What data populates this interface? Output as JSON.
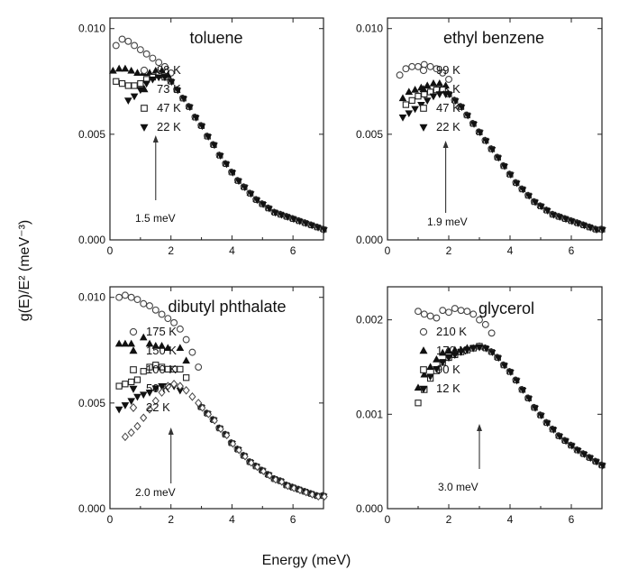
{
  "figure": {
    "xlabel": "Energy  (meV)",
    "ylabel": "g(E)/E² (meV⁻³)"
  },
  "chart_data": [
    {
      "type": "scatter",
      "title": "toluene",
      "xlim": [
        0,
        7
      ],
      "ylim": [
        0,
        0.0105
      ],
      "xticks": [
        "0",
        "2",
        "4",
        "6"
      ],
      "yticks": [
        "0.000",
        "0.005",
        "0.010"
      ],
      "annotation": {
        "label": "1.5 meV",
        "x": 1.5
      },
      "series": [
        {
          "name": "98 K",
          "marker": "circle-open",
          "x": [
            0.2,
            0.4,
            0.6,
            0.8,
            1.0,
            1.2,
            1.4,
            1.6,
            1.8,
            2.0
          ],
          "y": [
            0.0092,
            0.0095,
            0.0094,
            0.0092,
            0.009,
            0.0088,
            0.0086,
            0.0084,
            0.0082,
            0.0079
          ]
        },
        {
          "name": "73 K",
          "marker": "triangle-up",
          "x": [
            0.1,
            0.3,
            0.5,
            0.7,
            0.9,
            1.1,
            1.3,
            1.5,
            1.7,
            1.9
          ],
          "y": [
            0.008,
            0.0081,
            0.0081,
            0.008,
            0.0079,
            0.0079,
            0.0079,
            0.008,
            0.008,
            0.0078
          ]
        },
        {
          "name": "47 K",
          "marker": "square-open",
          "x": [
            0.2,
            0.4,
            0.6,
            0.8,
            1.0,
            1.2,
            1.4,
            1.6,
            1.8
          ],
          "y": [
            0.0075,
            0.0074,
            0.0073,
            0.0073,
            0.0074,
            0.0076,
            0.0077,
            0.0078,
            0.0077
          ]
        },
        {
          "name": "22 K",
          "marker": "triangle-down",
          "x": [
            0.6,
            0.8,
            1.0,
            1.2,
            1.4,
            1.6,
            1.8
          ],
          "y": [
            0.0066,
            0.0068,
            0.0071,
            0.0074,
            0.0076,
            0.0077,
            0.0077
          ]
        }
      ],
      "common_tail": {
        "x": [
          2.0,
          2.2,
          2.4,
          2.6,
          2.8,
          3.0,
          3.2,
          3.4,
          3.6,
          3.8,
          4.0,
          4.2,
          4.4,
          4.6,
          4.8,
          5.0,
          5.2,
          5.4,
          5.6,
          5.8,
          6.0,
          6.2,
          6.4,
          6.6,
          6.8,
          7.0
        ],
        "y": [
          0.0075,
          0.0071,
          0.0067,
          0.0063,
          0.0058,
          0.0054,
          0.0049,
          0.0045,
          0.004,
          0.0036,
          0.0032,
          0.0028,
          0.0025,
          0.0022,
          0.0019,
          0.0017,
          0.0015,
          0.0013,
          0.0012,
          0.0011,
          0.001,
          0.0009,
          0.0008,
          0.0007,
          0.0006,
          0.0005
        ]
      }
    },
    {
      "type": "scatter",
      "title": "ethyl benzene",
      "xlim": [
        0,
        7
      ],
      "ylim": [
        0,
        0.0105
      ],
      "xticks": [
        "0",
        "2",
        "4",
        "6"
      ],
      "yticks": [
        "0.000",
        "0.005",
        "0.010"
      ],
      "annotation": {
        "label": "1.9 meV",
        "x": 1.9
      },
      "series": [
        {
          "name": "99 K",
          "marker": "circle-open",
          "x": [
            0.4,
            0.6,
            0.8,
            1.0,
            1.2,
            1.4,
            1.6,
            1.8,
            2.0
          ],
          "y": [
            0.0078,
            0.0081,
            0.0082,
            0.0082,
            0.0083,
            0.0082,
            0.0081,
            0.0079,
            0.0076
          ]
        },
        {
          "name": "73 K",
          "marker": "triangle-up",
          "x": [
            0.5,
            0.7,
            0.9,
            1.1,
            1.3,
            1.5,
            1.7,
            1.9
          ],
          "y": [
            0.0067,
            0.007,
            0.0071,
            0.0072,
            0.0073,
            0.0074,
            0.0074,
            0.0073
          ]
        },
        {
          "name": "47 K",
          "marker": "square-open",
          "x": [
            0.6,
            0.8,
            1.0,
            1.2,
            1.4,
            1.6,
            1.8
          ],
          "y": [
            0.0064,
            0.0066,
            0.0068,
            0.0069,
            0.007,
            0.0071,
            0.0071
          ]
        },
        {
          "name": "22 K",
          "marker": "triangle-down",
          "x": [
            0.5,
            0.7,
            0.9,
            1.1,
            1.3,
            1.5,
            1.7,
            1.9
          ],
          "y": [
            0.0058,
            0.006,
            0.0062,
            0.0064,
            0.0066,
            0.0068,
            0.0069,
            0.0069
          ]
        }
      ],
      "common_tail": {
        "x": [
          2.0,
          2.2,
          2.4,
          2.6,
          2.8,
          3.0,
          3.2,
          3.4,
          3.6,
          3.8,
          4.0,
          4.2,
          4.4,
          4.6,
          4.8,
          5.0,
          5.2,
          5.4,
          5.6,
          5.8,
          6.0,
          6.2,
          6.4,
          6.6,
          6.8,
          7.0
        ],
        "y": [
          0.0069,
          0.0066,
          0.0063,
          0.0059,
          0.0055,
          0.0051,
          0.0047,
          0.0043,
          0.0039,
          0.0035,
          0.0031,
          0.0027,
          0.0024,
          0.0021,
          0.0018,
          0.0016,
          0.0014,
          0.0012,
          0.0011,
          0.001,
          0.0009,
          0.0008,
          0.0007,
          0.0006,
          0.0005,
          0.0005
        ]
      }
    },
    {
      "type": "scatter",
      "title": "dibutyl phthalate",
      "xlim": [
        0,
        7
      ],
      "ylim": [
        0,
        0.0105
      ],
      "xticks": [
        "0",
        "2",
        "4",
        "6"
      ],
      "yticks": [
        "0.000",
        "0.005",
        "0.010"
      ],
      "annotation": {
        "label": "2.0 meV",
        "x": 2.0
      },
      "series": [
        {
          "name": "175 K",
          "marker": "circle-open",
          "x": [
            0.3,
            0.5,
            0.7,
            0.9,
            1.1,
            1.3,
            1.5,
            1.7,
            1.9,
            2.1,
            2.3,
            2.5,
            2.7,
            2.9
          ],
          "y": [
            0.01,
            0.0101,
            0.01,
            0.0099,
            0.0097,
            0.0096,
            0.0094,
            0.0092,
            0.009,
            0.0088,
            0.0085,
            0.008,
            0.0074,
            0.0067
          ]
        },
        {
          "name": "150 K",
          "marker": "triangle-up",
          "x": [
            0.3,
            0.5,
            0.7,
            1.1,
            1.3,
            1.5,
            1.7,
            1.9,
            2.3,
            2.5
          ],
          "y": [
            0.0078,
            0.0078,
            0.0078,
            0.0081,
            0.0078,
            0.0077,
            0.0077,
            0.0076,
            0.0076,
            0.007
          ]
        },
        {
          "name": "100 K",
          "marker": "square-open",
          "x": [
            0.3,
            0.5,
            0.7,
            0.9,
            1.1,
            1.3,
            1.5,
            1.7,
            1.9,
            2.1,
            2.3,
            2.5
          ],
          "y": [
            0.0058,
            0.0059,
            0.006,
            0.0061,
            0.0065,
            0.0067,
            0.0068,
            0.0067,
            0.0066,
            0.0066,
            0.0066,
            0.0062
          ]
        },
        {
          "name": "50 K",
          "marker": "triangle-down",
          "x": [
            0.3,
            0.5,
            0.7,
            0.9,
            1.1,
            1.3,
            1.5,
            1.7,
            1.9,
            2.1,
            2.3
          ],
          "y": [
            0.0047,
            0.0049,
            0.0051,
            0.0053,
            0.0054,
            0.0055,
            0.0057,
            0.0058,
            0.0058,
            0.0058,
            0.0056
          ]
        },
        {
          "name": "22 K",
          "marker": "diamond-open",
          "x": [
            0.5,
            0.7,
            0.9,
            1.1,
            1.3,
            1.5,
            1.7,
            1.9,
            2.1,
            2.3,
            2.5,
            2.7,
            2.9
          ],
          "y": [
            0.0034,
            0.0036,
            0.0039,
            0.0043,
            0.0047,
            0.0051,
            0.0055,
            0.0058,
            0.0059,
            0.0058,
            0.0056,
            0.0053,
            0.005
          ]
        }
      ],
      "common_tail": {
        "x": [
          3.0,
          3.2,
          3.4,
          3.6,
          3.8,
          4.0,
          4.2,
          4.4,
          4.6,
          4.8,
          5.0,
          5.2,
          5.4,
          5.6,
          5.8,
          6.0,
          6.2,
          6.4,
          6.6,
          6.8,
          7.0
        ],
        "y": [
          0.0048,
          0.0045,
          0.0042,
          0.0038,
          0.0035,
          0.0031,
          0.0028,
          0.0025,
          0.0022,
          0.002,
          0.0018,
          0.0016,
          0.0014,
          0.0013,
          0.0011,
          0.001,
          0.0009,
          0.0008,
          0.0007,
          0.0006,
          0.0006
        ]
      }
    },
    {
      "type": "scatter",
      "title": "glycerol",
      "xlim": [
        0,
        7
      ],
      "ylim": [
        0,
        0.00235
      ],
      "xticks": [
        "0",
        "2",
        "4",
        "6"
      ],
      "yticks": [
        "0.000",
        "0.001",
        "0.002"
      ],
      "annotation": {
        "label": "3.0 meV",
        "x": 3.0
      },
      "series": [
        {
          "name": "210 K",
          "marker": "circle-open",
          "x": [
            1.0,
            1.2,
            1.4,
            1.6,
            1.8,
            2.0,
            2.2,
            2.4,
            2.6,
            2.8,
            3.0,
            3.2,
            3.4
          ],
          "y": [
            0.00209,
            0.00206,
            0.00204,
            0.00202,
            0.0021,
            0.00208,
            0.00212,
            0.0021,
            0.00209,
            0.00206,
            0.002,
            0.00195,
            0.00186
          ]
        },
        {
          "name": "170 K",
          "marker": "triangle-up",
          "x": [
            1.0,
            1.2,
            1.4,
            1.6,
            1.8,
            2.0,
            2.2,
            2.4,
            2.6,
            2.8,
            3.0
          ],
          "y": [
            0.00128,
            0.00142,
            0.0015,
            0.00158,
            0.00165,
            0.00167,
            0.00168,
            0.00168,
            0.0017,
            0.0017,
            0.00172
          ]
        },
        {
          "name": "90 K",
          "marker": "square-open",
          "x": [
            1.0,
            1.2,
            1.4,
            1.6,
            1.8,
            2.0,
            2.2,
            2.4,
            2.6,
            2.8,
            3.0
          ],
          "y": [
            0.00112,
            0.00126,
            0.00138,
            0.00146,
            0.00155,
            0.0016,
            0.00163,
            0.00166,
            0.00168,
            0.0017,
            0.00172
          ]
        },
        {
          "name": "12 K",
          "marker": "triangle-down",
          "x": [
            1.4,
            1.6,
            1.8,
            2.0,
            2.2,
            2.4,
            2.6,
            2.8,
            3.0
          ],
          "y": [
            0.0014,
            0.00148,
            0.00155,
            0.0016,
            0.00163,
            0.00166,
            0.00168,
            0.0017,
            0.00171
          ]
        }
      ],
      "common_tail": {
        "x": [
          3.2,
          3.4,
          3.6,
          3.8,
          4.0,
          4.2,
          4.4,
          4.6,
          4.8,
          5.0,
          5.2,
          5.4,
          5.6,
          5.8,
          6.0,
          6.2,
          6.4,
          6.6,
          6.8,
          7.0
        ],
        "y": [
          0.0017,
          0.00166,
          0.0016,
          0.00152,
          0.00145,
          0.00136,
          0.00126,
          0.00117,
          0.00107,
          0.00099,
          0.00091,
          0.00084,
          0.00077,
          0.00072,
          0.00067,
          0.00062,
          0.00058,
          0.00054,
          0.0005,
          0.00046
        ]
      }
    }
  ]
}
